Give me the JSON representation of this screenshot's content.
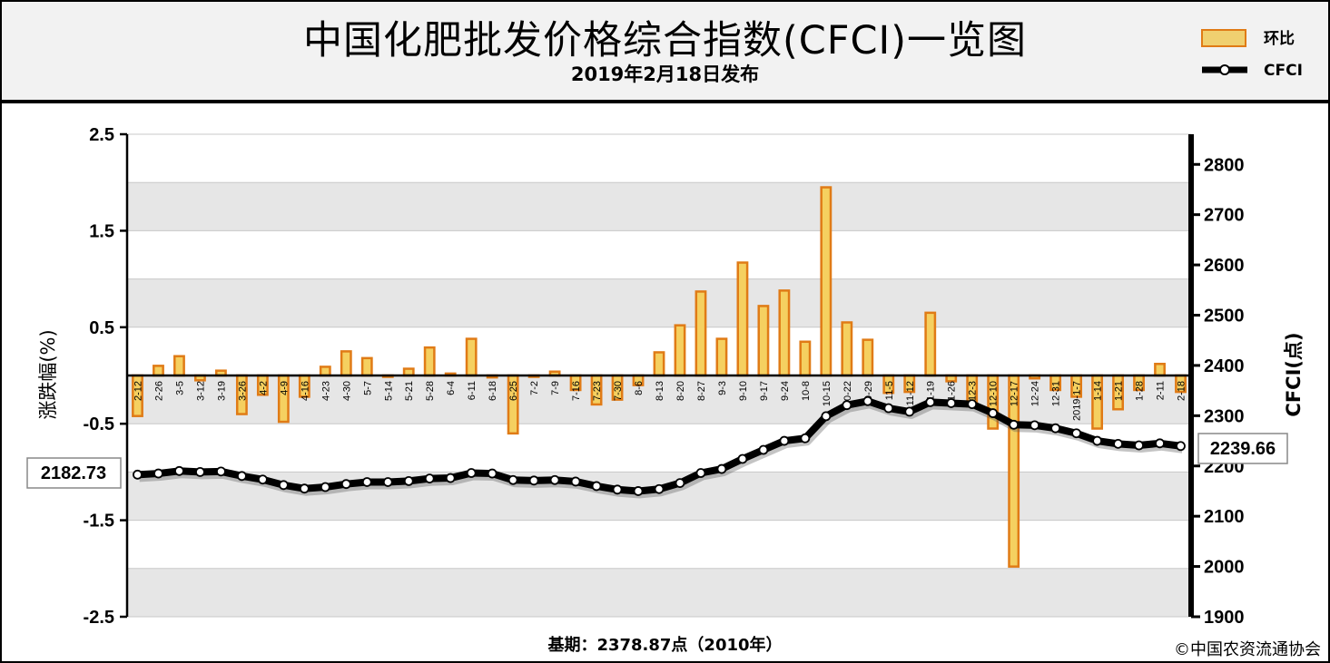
{
  "header": {
    "title": "中国化肥批发价格综合指数(CFCI)一览图",
    "subtitle": "2019年2月18日发布"
  },
  "footer": {
    "base_period": "基期：2378.87点（2010年）",
    "credit": "©中国农资流通协会"
  },
  "colors": {
    "bar_fill": "#f5d060",
    "bar_edge": "#e07b16",
    "line": "#000000",
    "marker": "#ffffff",
    "band": "#e6e6e6"
  },
  "chart_data": {
    "type": "bar+line",
    "categories": [
      "2-12",
      "2-26",
      "3-5",
      "3-12",
      "3-19",
      "3-26",
      "4-2",
      "4-9",
      "4-16",
      "4-23",
      "4-30",
      "5-7",
      "5-14",
      "5-21",
      "5-28",
      "6-4",
      "6-11",
      "6-18",
      "6-25",
      "7-2",
      "7-9",
      "7-16",
      "7-23",
      "7-30",
      "8-6",
      "8-13",
      "8-20",
      "8-27",
      "9-3",
      "9-10",
      "9-17",
      "9-24",
      "10-8",
      "10-15",
      "10-22",
      "10-29",
      "11-5",
      "11-12",
      "11-19",
      "11-26",
      "12-3",
      "12-10",
      "12-17",
      "12-24",
      "12-31",
      "2019-1-7",
      "1-14",
      "1-21",
      "1-28",
      "2-11",
      "2-18"
    ],
    "series": [
      {
        "name": "环比",
        "axis": "left",
        "values": [
          -0.42,
          0.1,
          0.2,
          -0.05,
          0.05,
          -0.4,
          -0.2,
          -0.48,
          -0.22,
          0.09,
          0.25,
          0.18,
          0.0,
          0.07,
          0.29,
          0.02,
          0.38,
          -0.02,
          -0.6,
          0.0,
          0.04,
          -0.15,
          -0.3,
          -0.25,
          -0.1,
          0.24,
          0.52,
          0.87,
          0.38,
          1.17,
          0.72,
          0.88,
          0.35,
          1.95,
          0.55,
          0.37,
          -0.18,
          -0.17,
          0.65,
          -0.06,
          -0.32,
          -0.55,
          -1.98,
          -0.03,
          -0.15,
          -0.22,
          -0.55,
          -0.35,
          -0.15,
          0.12,
          -0.17
        ]
      },
      {
        "name": "CFCI",
        "axis": "right",
        "values": [
          2182.73,
          2185,
          2190,
          2188,
          2189,
          2180,
          2173,
          2162,
          2155,
          2158,
          2164,
          2168,
          2168,
          2170,
          2175,
          2176,
          2186,
          2185,
          2172,
          2171,
          2172,
          2169,
          2160,
          2153,
          2150,
          2154,
          2166,
          2186,
          2194,
          2214,
          2232,
          2250,
          2255,
          2299,
          2321,
          2329,
          2315,
          2308,
          2327,
          2325,
          2323,
          2305,
          2282,
          2281,
          2275,
          2265,
          2250,
          2244,
          2241,
          2245,
          2239.66
        ]
      }
    ],
    "first_value_label": "2182.73",
    "last_value_label": "2239.66",
    "yleft": {
      "label": "涨跌幅(%)",
      "ylim": [
        -2.5,
        2.5
      ],
      "ticks": [
        "2.5",
        "1.5",
        "0.5",
        "-0.5",
        "-1.5",
        "-2.5"
      ],
      "tick_values": [
        2.5,
        1.5,
        0.5,
        -0.5,
        -1.5,
        -2.5
      ]
    },
    "yright": {
      "label": "CFCI(点)",
      "ylim": [
        1900,
        2860
      ],
      "ticks": [
        "2800",
        "2700",
        "2600",
        "2500",
        "2400",
        "2300",
        "2200",
        "2100",
        "2000",
        "1900"
      ],
      "tick_values": [
        2800,
        2700,
        2600,
        2500,
        2400,
        2300,
        2200,
        2100,
        2000,
        1900
      ]
    },
    "legend": {
      "position": "top-right",
      "items": [
        "环比",
        "CFCI"
      ]
    },
    "grid": true
  }
}
